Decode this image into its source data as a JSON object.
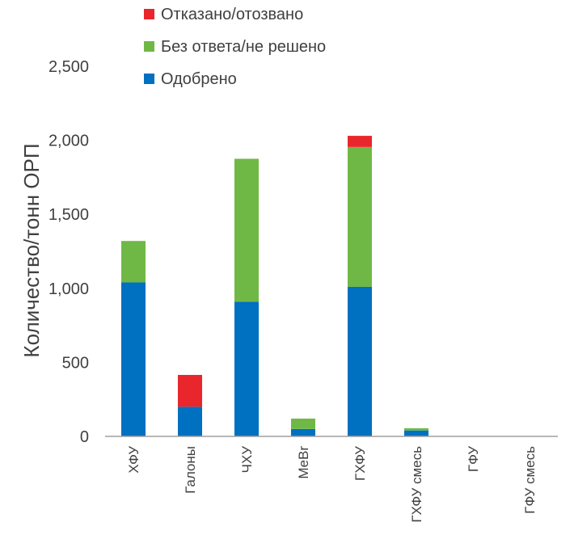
{
  "chart_data": {
    "type": "bar",
    "stacked": true,
    "title": "",
    "xlabel": "",
    "ylabel": "Количество/тонн ОРП",
    "ylim": [
      0,
      2500
    ],
    "yticks": [
      0,
      500,
      1000,
      1500,
      2000,
      2500
    ],
    "ytick_labels": [
      "0",
      "500",
      "1,000",
      "1,500",
      "2,000",
      "2,500"
    ],
    "grid": false,
    "legend_position": "top",
    "categories": [
      "ХФУ",
      "Галоны",
      "ЧХУ",
      "MeBr",
      "ГХФУ",
      "ГХФУ смесь",
      "ГФУ",
      "ГФУ смесь"
    ],
    "series": [
      {
        "name": "Одобрено",
        "color": "#0070c0",
        "values": [
          1040,
          200,
          910,
          50,
          1010,
          40,
          0,
          0
        ]
      },
      {
        "name": "Без ответа/не решено",
        "color": "#70b846",
        "values": [
          280,
          0,
          965,
          70,
          945,
          15,
          0,
          0
        ]
      },
      {
        "name": "Отказано/отозвано",
        "color": "#e8262b",
        "values": [
          0,
          215,
          0,
          0,
          75,
          0,
          0,
          0
        ]
      }
    ],
    "legend_order": [
      "Отказано/отозвано",
      "Без ответа/не решено",
      "Одобрено"
    ]
  }
}
